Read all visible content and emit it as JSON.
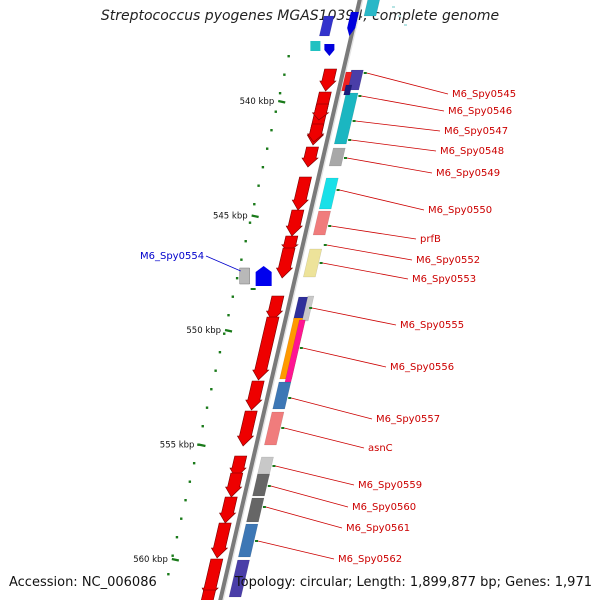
{
  "title": "Streptococcus pyogenes MGAS10394, complete genome",
  "footer": {
    "accession": "Accession: NC_006086",
    "summary": "Topology: circular; Length: 1,899,877 bp; Genes: 1,971"
  },
  "ruler": {
    "ticks": [
      {
        "label": "540 kbp",
        "kbp": 540
      },
      {
        "label": "545 kbp",
        "kbp": 545
      },
      {
        "label": "550 kbp",
        "kbp": 550
      },
      {
        "label": "555 kbp",
        "kbp": 555
      },
      {
        "label": "560 kbp",
        "kbp": 560
      }
    ],
    "tick_color": "#1a7a1a"
  },
  "colors": {
    "backbone": "#7a7a7a",
    "cds": "#ee0000",
    "label_forward": "#cc0000",
    "label_reverse": "#0000cc"
  },
  "gene_labels": [
    {
      "text": "M6_Spy0545",
      "strand": "forward"
    },
    {
      "text": "M6_Spy0546",
      "strand": "forward"
    },
    {
      "text": "M6_Spy0547",
      "strand": "forward"
    },
    {
      "text": "M6_Spy0548",
      "strand": "forward"
    },
    {
      "text": "M6_Spy0549",
      "strand": "forward"
    },
    {
      "text": "M6_Spy0550",
      "strand": "forward"
    },
    {
      "text": "prfB",
      "strand": "forward"
    },
    {
      "text": "M6_Spy0552",
      "strand": "forward"
    },
    {
      "text": "M6_Spy0553",
      "strand": "forward"
    },
    {
      "text": "M6_Spy0554",
      "strand": "reverse"
    },
    {
      "text": "M6_Spy0555",
      "strand": "forward"
    },
    {
      "text": "M6_Spy0556",
      "strand": "forward"
    },
    {
      "text": "M6_Spy0557",
      "strand": "forward"
    },
    {
      "text": "asnC",
      "strand": "forward"
    },
    {
      "text": "M6_Spy0559",
      "strand": "forward"
    },
    {
      "text": "M6_Spy0560",
      "strand": "forward"
    },
    {
      "text": "M6_Spy0561",
      "strand": "forward"
    },
    {
      "text": "M6_Spy0562",
      "strand": "forward"
    }
  ]
}
